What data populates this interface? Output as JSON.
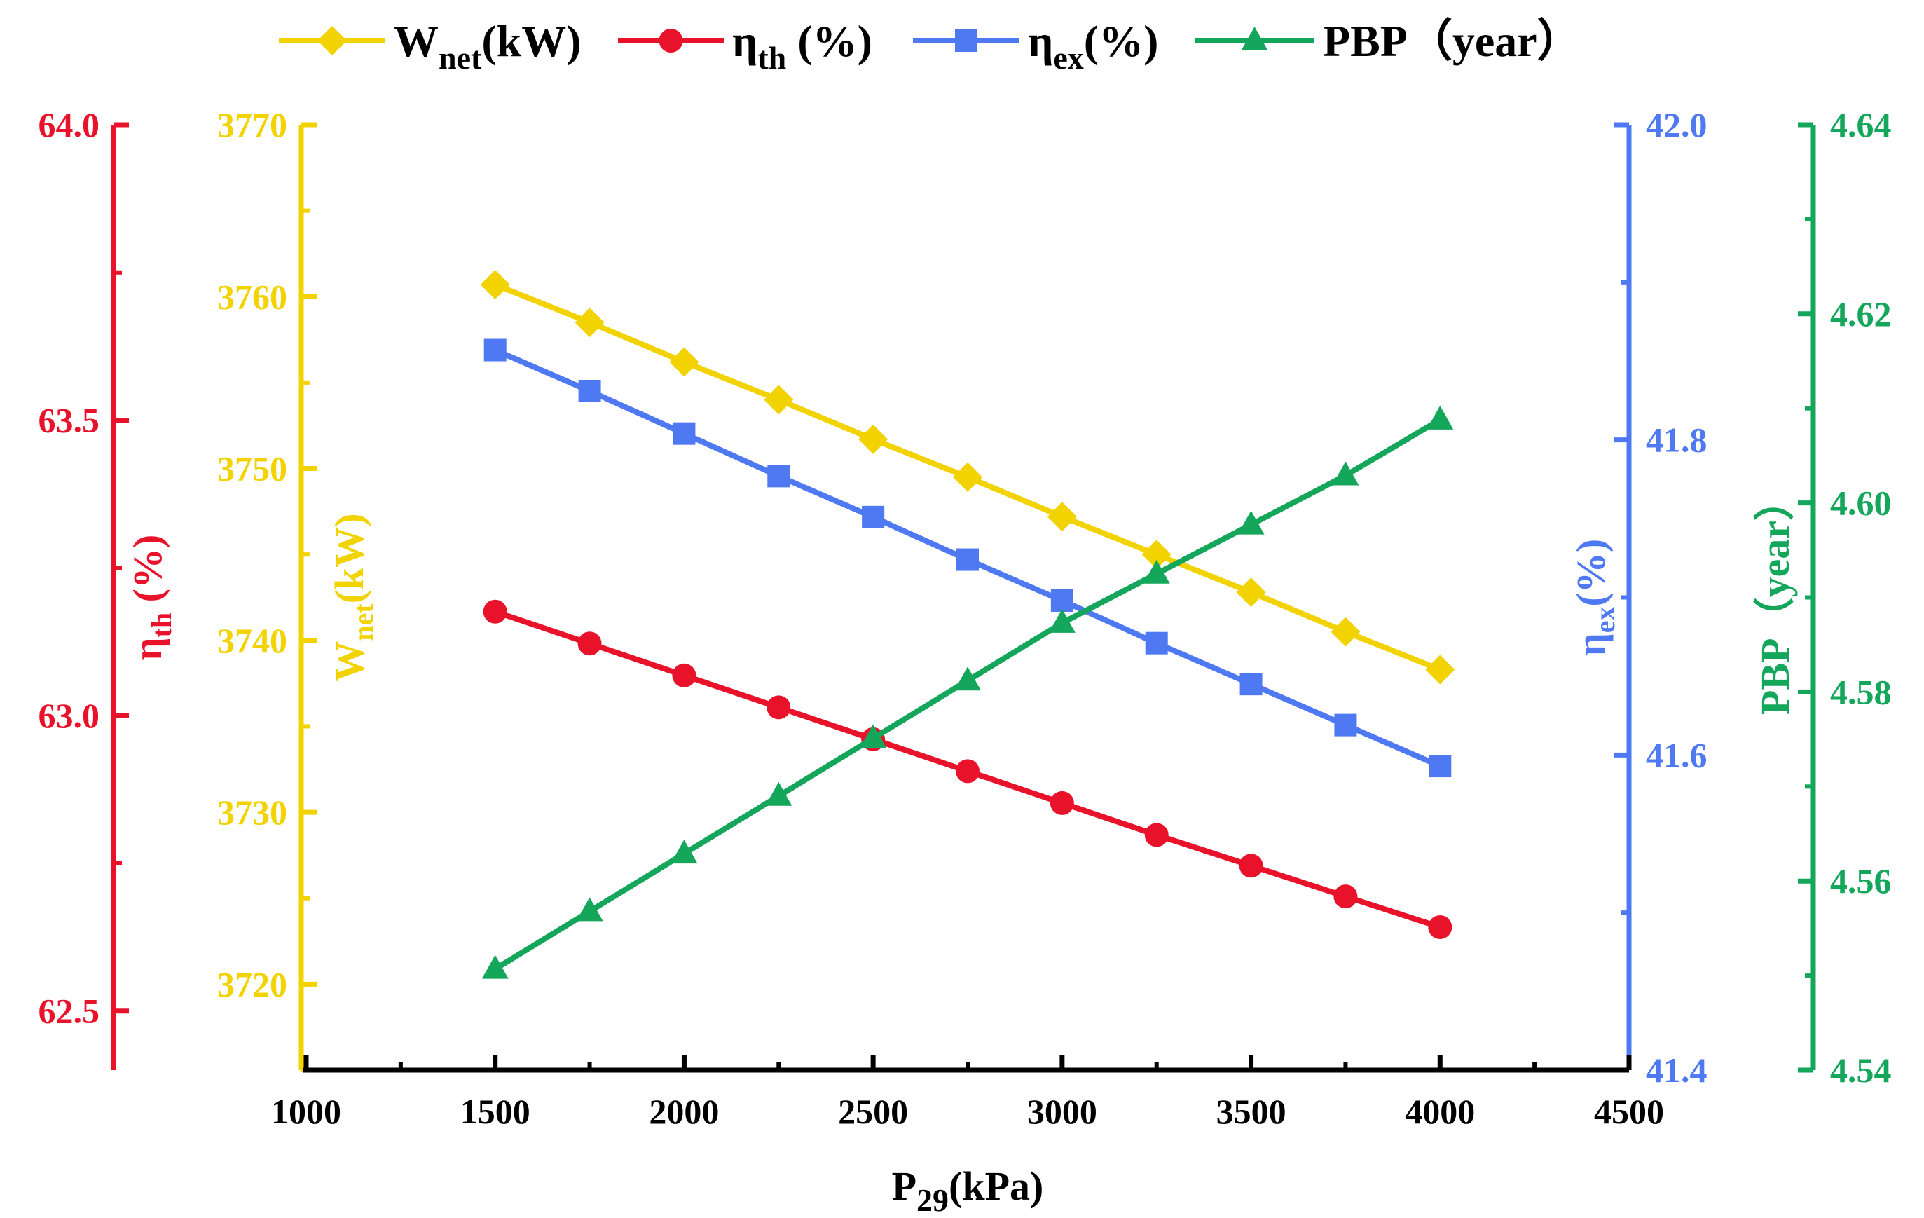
{
  "chart_data": {
    "type": "line",
    "title": "",
    "x": [
      1500,
      1750,
      2000,
      2250,
      2500,
      2750,
      3000,
      3250,
      3500,
      3750,
      4000
    ],
    "xlabel": "P29(kPa)",
    "xlabel_main": "P",
    "xlabel_sub": "29",
    "xlabel_unit": "(kPa)",
    "xlim": [
      1000,
      4500
    ],
    "xticks": [
      "1000",
      "1500",
      "2000",
      "2500",
      "3000",
      "3500",
      "4000",
      "4500"
    ],
    "grid": false,
    "legend_position": "top",
    "series": [
      {
        "key": "wnet",
        "name": "Wnet(kW)",
        "main": "W",
        "sub": "net",
        "unit": "(kW)",
        "color": "#F2D300",
        "marker": "diamond",
        "axis": "W",
        "values": [
          3760.7,
          3758.5,
          3756.2,
          3754.0,
          3751.7,
          3749.5,
          3747.2,
          3745.0,
          3742.8,
          3740.5,
          3738.3
        ]
      },
      {
        "key": "eta_th",
        "name": "ηth (%)",
        "main": "η",
        "sub": "th",
        "unit": " (%)",
        "color": "#E8132A",
        "marker": "circle",
        "axis": "th",
        "values": [
          63.176,
          63.122,
          63.068,
          63.014,
          62.96,
          62.906,
          62.852,
          62.798,
          62.746,
          62.694,
          62.642
        ]
      },
      {
        "key": "eta_ex",
        "name": "ηex(%)",
        "main": "η",
        "sub": "ex",
        "unit": "(%)",
        "color": "#4F79F2",
        "marker": "square",
        "axis": "ex",
        "values": [
          41.857,
          41.831,
          41.804,
          41.777,
          41.751,
          41.724,
          41.698,
          41.671,
          41.645,
          41.619,
          41.593
        ]
      },
      {
        "key": "pbp",
        "name": "PBP（year）",
        "main": "PBP",
        "sub": "",
        "unit": "（year）",
        "color": "#14A65A",
        "marker": "triangle",
        "axis": "pbp",
        "values": [
          4.5507,
          4.5568,
          4.5629,
          4.569,
          4.5751,
          4.5812,
          4.5873,
          4.5925,
          4.5977,
          4.6029,
          4.6088
        ]
      }
    ],
    "axes": {
      "th": {
        "label": "ηth (%)",
        "main": "η",
        "sub": "th",
        "unit": " (%)",
        "color": "#E8132A",
        "ylim": [
          62.4,
          64.0
        ],
        "ticks": [
          "62.5",
          "63.0",
          "63.5",
          "64.0"
        ]
      },
      "W": {
        "label": "Wnet(kW)",
        "main": "W",
        "sub": "net",
        "unit": "(kW)",
        "color": "#F2D300",
        "ylim": [
          3715,
          3770
        ],
        "ticks": [
          "3720",
          "3730",
          "3740",
          "3750",
          "3760",
          "3770"
        ]
      },
      "ex": {
        "label": "ηex(%)",
        "main": "η",
        "sub": "ex",
        "unit": "(%)",
        "color": "#4F79F2",
        "ylim": [
          41.4,
          42.0
        ],
        "ticks": [
          "41.4",
          "41.6",
          "41.8",
          "42.0"
        ]
      },
      "pbp": {
        "label": "PBP（year）",
        "main": "PBP",
        "sub": "",
        "unit": "（year）",
        "color": "#14A65A",
        "ylim": [
          4.54,
          4.64
        ],
        "ticks": [
          "4.54",
          "4.56",
          "4.58",
          "4.60",
          "4.62",
          "4.64"
        ]
      }
    }
  }
}
